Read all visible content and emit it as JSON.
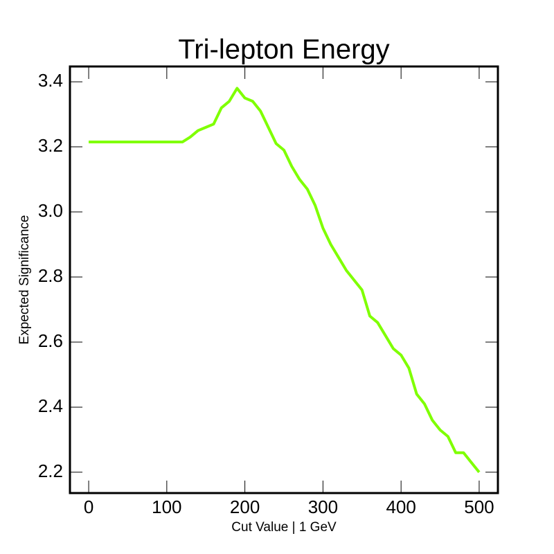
{
  "chart_data": {
    "type": "line",
    "title": "Tri-lepton Energy",
    "x_label": "Cut Value | 1 GeV",
    "y_label": "Expected Significance",
    "x": [
      0,
      10,
      20,
      30,
      40,
      50,
      60,
      70,
      80,
      90,
      100,
      110,
      120,
      130,
      140,
      150,
      160,
      170,
      180,
      190,
      200,
      210,
      220,
      230,
      240,
      250,
      260,
      270,
      280,
      290,
      300,
      310,
      320,
      330,
      340,
      350,
      360,
      370,
      380,
      390,
      400,
      410,
      420,
      430,
      440,
      450,
      460,
      470,
      480,
      490,
      500
    ],
    "values": [
      3.215,
      3.215,
      3.215,
      3.215,
      3.215,
      3.215,
      3.215,
      3.215,
      3.215,
      3.215,
      3.215,
      3.215,
      3.215,
      3.23,
      3.25,
      3.26,
      3.27,
      3.32,
      3.34,
      3.38,
      3.35,
      3.34,
      3.31,
      3.26,
      3.21,
      3.19,
      3.14,
      3.1,
      3.07,
      3.02,
      2.95,
      2.9,
      2.86,
      2.82,
      2.79,
      2.76,
      2.68,
      2.66,
      2.62,
      2.58,
      2.56,
      2.52,
      2.44,
      2.41,
      2.36,
      2.33,
      2.31,
      2.26,
      2.26,
      2.23,
      2.2
    ],
    "color": "#7fff00",
    "xlim": [
      -24,
      524
    ],
    "ylim": [
      2.136,
      3.447
    ],
    "xticks": [
      0,
      100,
      200,
      300,
      400,
      500
    ],
    "yticks": [
      2.2,
      2.4,
      2.6,
      2.8,
      {
        "value": 3,
        "label": "3.0"
      },
      3.2,
      3.4
    ]
  }
}
